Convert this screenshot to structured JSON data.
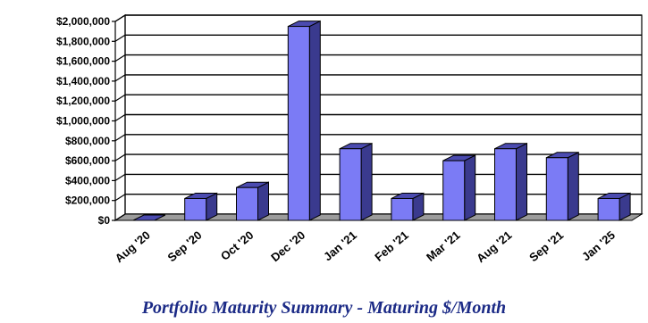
{
  "chart_data": {
    "type": "bar",
    "title": "Portfolio Maturity Summary - Maturing $/Month",
    "xlabel": "",
    "ylabel": "",
    "categories": [
      "Aug '20",
      "Sep '20",
      "Oct '20",
      "Dec '20",
      "Jan '21",
      "Feb '21",
      "Mar '21",
      "Aug '21",
      "Sep '21",
      "Jan '25"
    ],
    "values": [
      0,
      220000,
      330000,
      1950000,
      720000,
      220000,
      600000,
      720000,
      630000,
      220000
    ],
    "ylim": [
      0,
      2000000
    ],
    "y_ticks": [
      0,
      200000,
      400000,
      600000,
      800000,
      1000000,
      1200000,
      1400000,
      1600000,
      1800000,
      2000000
    ],
    "y_tick_labels": [
      "$0",
      "$200,000",
      "$400,000",
      "$600,000",
      "$800,000",
      "$1,000,000",
      "$1,200,000",
      "$1,400,000",
      "$1,600,000",
      "$1,800,000",
      "$2,000,000"
    ],
    "grid": true,
    "style": "3d",
    "colors": {
      "bar_front": "#7b7bf5",
      "bar_side": "#3a3a8e",
      "bar_top": "#4b4bb0",
      "floor": "#9c9c9c",
      "title": "#1b2a86"
    }
  }
}
